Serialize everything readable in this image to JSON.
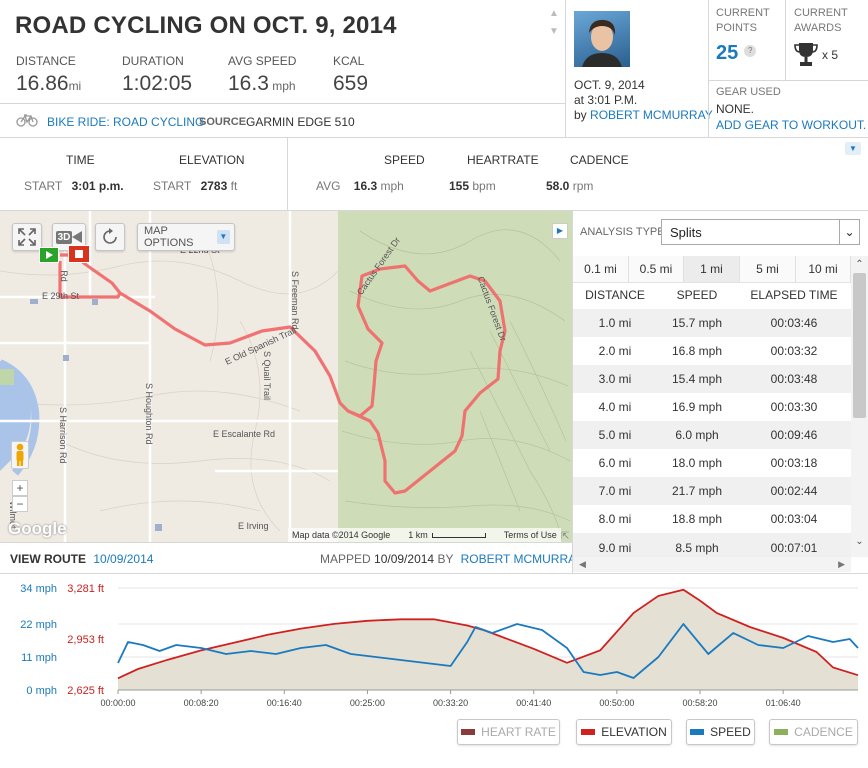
{
  "header": {
    "title": "ROAD CYCLING ON OCT. 9, 2014",
    "stats": [
      {
        "label": "DISTANCE",
        "value": "16.86",
        "unit": "mi"
      },
      {
        "label": "DURATION",
        "value": "1:02:05",
        "unit": ""
      },
      {
        "label": "AVG SPEED",
        "value": "16.3",
        "unit": "mph"
      },
      {
        "label": "KCAL",
        "value": "659",
        "unit": ""
      }
    ],
    "activity_link": "BIKE RIDE: ROAD CYCLING",
    "source_label": "SOURCE",
    "source_value": "GARMIN EDGE 510",
    "date": "OCT. 9, 2014",
    "time": "at 3:01 P.M.",
    "by": "by",
    "author": "ROBERT MCMURRAY"
  },
  "points": {
    "label": "CURRENT POINTS",
    "value": "25",
    "help": "?"
  },
  "awards": {
    "label": "CURRENT AWARDS",
    "value": "x 5",
    "icon": "trophy-icon"
  },
  "gear": {
    "label": "GEAR USED",
    "value": "NONE.",
    "link": "ADD GEAR TO WORKOUT."
  },
  "summary": {
    "time_label": "TIME",
    "elevation_label": "ELEVATION",
    "start_label": "START",
    "start_time": "3:01 p.m.",
    "start_label2": "START",
    "start_elev": "2783",
    "elev_unit": "ft",
    "speed_label": "SPEED",
    "heartrate_label": "HEARTRATE",
    "cadence_label": "CADENCE",
    "avg_label": "AVG",
    "avg_speed": "16.3",
    "speed_unit": "mph",
    "avg_hr": "155",
    "hr_unit": "bpm",
    "avg_cad": "58.0",
    "cad_unit": "rpm"
  },
  "map": {
    "map_options": "MAP OPTIONS",
    "three_d": "3D",
    "streets": [
      "E 22nd St",
      "E 29th St",
      "Rd",
      "S Freeman Rd",
      "E Old Spanish Trail",
      "S Quail Trail",
      "S Houghton Rd",
      "S Harrison Rd",
      "E Escalante Rd",
      "E Irving",
      "Cactus Forest Dr",
      "Cactus Forest Dr",
      "Wilmot"
    ],
    "attribution": "Map data ©2014 Google",
    "scale": "1 km",
    "terms": "Terms of Use",
    "google": "Google",
    "zoom_in": "+",
    "zoom_out": "−"
  },
  "route": {
    "view_label": "VIEW ROUTE",
    "view_date": "10/09/2014",
    "mapped_label": "MAPPED",
    "mapped_date": "10/09/2014",
    "mapped_by": "BY",
    "mapped_author": "ROBERT MCMURRAY"
  },
  "analysis": {
    "label": "ANALYSIS TYPE:",
    "selected": "Splits",
    "tabs": [
      "0.1 mi",
      "0.5 mi",
      "1 mi",
      "5 mi",
      "10 mi"
    ],
    "active_tab": 2,
    "columns": [
      "DISTANCE",
      "SPEED",
      "ELAPSED TIME"
    ],
    "rows": [
      [
        "1.0 mi",
        "15.7 mph",
        "00:03:46"
      ],
      [
        "2.0 mi",
        "16.8 mph",
        "00:03:32"
      ],
      [
        "3.0 mi",
        "15.4 mph",
        "00:03:48"
      ],
      [
        "4.0 mi",
        "16.9 mph",
        "00:03:30"
      ],
      [
        "5.0 mi",
        "6.0 mph",
        "00:09:46"
      ],
      [
        "6.0 mi",
        "18.0 mph",
        "00:03:18"
      ],
      [
        "7.0 mi",
        "21.7 mph",
        "00:02:44"
      ],
      [
        "8.0 mi",
        "18.8 mph",
        "00:03:04"
      ],
      [
        "9.0 mi",
        "8.5 mph",
        "00:07:01"
      ]
    ]
  },
  "chart_data": {
    "type": "line",
    "x_ticks": [
      "00:00:00",
      "00:08:20",
      "00:16:40",
      "00:25:00",
      "00:33:20",
      "00:41:40",
      "00:50:00",
      "00:58:20",
      "01:06:40"
    ],
    "x_range_seconds": [
      0,
      4450
    ],
    "speed_axis": {
      "labels": [
        "34 mph",
        "22 mph",
        "11 mph",
        "0 mph"
      ],
      "values": [
        34,
        22,
        11,
        0
      ],
      "color": "#1a7ac0"
    },
    "elevation_axis": {
      "labels": [
        "3,281 ft",
        "2,953 ft",
        "2,625 ft"
      ],
      "values": [
        3281,
        2953,
        2625
      ],
      "color": "#d02020"
    },
    "series": [
      {
        "name": "ELEVATION",
        "color": "#d02020",
        "x": [
          0,
          120,
          300,
          500,
          700,
          900,
          1100,
          1300,
          1500,
          1700,
          1900,
          2100,
          2200,
          2300,
          2500,
          2700,
          2900,
          3000,
          3100,
          3250,
          3400,
          3500,
          3600,
          3800,
          4000,
          4200,
          4300,
          4450
        ],
        "y": [
          2700,
          2760,
          2820,
          2880,
          2930,
          2980,
          3020,
          3050,
          3070,
          3080,
          3080,
          3040,
          3010,
          2970,
          2890,
          2800,
          2880,
          3000,
          3120,
          3230,
          3270,
          3200,
          3120,
          3030,
          2960,
          2870,
          2770,
          2720
        ]
      },
      {
        "name": "SPEED",
        "color": "#1a7ac0",
        "x": [
          0,
          60,
          150,
          250,
          350,
          500,
          650,
          800,
          950,
          1100,
          1250,
          1400,
          1550,
          1700,
          1850,
          2000,
          2100,
          2150,
          2250,
          2400,
          2550,
          2700,
          2800,
          2900,
          3000,
          3100,
          3250,
          3400,
          3550,
          3700,
          3850,
          4000,
          4150,
          4300,
          4400,
          4450
        ],
        "y": [
          9,
          16,
          15,
          13,
          15,
          14,
          12,
          13,
          12,
          14,
          15,
          12,
          11,
          10,
          9,
          8,
          16,
          21,
          19,
          22,
          20,
          14,
          6,
          5,
          6,
          4,
          11,
          22,
          12,
          19,
          15,
          14,
          18,
          16,
          17,
          14
        ]
      },
      {
        "name": "HEART RATE",
        "color": "#8b3a3a"
      },
      {
        "name": "CADENCE",
        "color": "#8db05a"
      }
    ]
  }
}
